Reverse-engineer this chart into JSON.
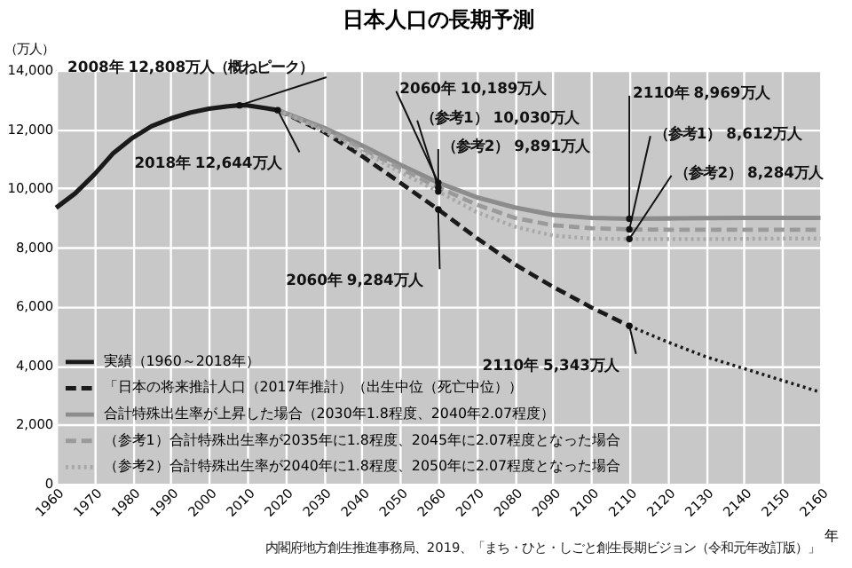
{
  "chart_data": {
    "type": "line",
    "title": "日本人口の長期予測",
    "ylabel": "（万人）",
    "xlabel": "年",
    "xlim": [
      1960,
      2160
    ],
    "xticks": [
      1960,
      1970,
      1980,
      1990,
      2000,
      2010,
      2020,
      2030,
      2040,
      2050,
      2060,
      2070,
      2080,
      2090,
      2100,
      2110,
      2120,
      2130,
      2140,
      2150,
      2160
    ],
    "ylim": [
      0,
      14000
    ],
    "yticks": [
      0,
      {
        "value": 2000,
        "label": "2,000"
      },
      {
        "value": 4000,
        "label": "4,000"
      },
      {
        "value": 6000,
        "label": "6,000"
      },
      {
        "value": 8000,
        "label": "8,000"
      },
      {
        "value": 10000,
        "label": "10,000"
      },
      {
        "value": 12000,
        "label": "12,000"
      },
      {
        "value": 14000,
        "label": "14,000"
      }
    ],
    "grid": true,
    "legend": "bottom left",
    "series": [
      {
        "name": "実績（1960～2018年）",
        "color": "#1a1a1a",
        "line_style": "solid",
        "x": [
          1960,
          1965,
          1970,
          1975,
          1980,
          1985,
          1990,
          1995,
          2000,
          2005,
          2008,
          2010,
          2015,
          2018
        ],
        "values": [
          9342,
          9828,
          10467,
          11194,
          11706,
          12105,
          12361,
          12557,
          12693,
          12777,
          12808,
          12806,
          12709,
          12644
        ]
      },
      {
        "name": "「日本の将来推計人口（2017年推計）（出生中位（死亡中位））",
        "color": "#1a1a1a",
        "line_style": "dashed",
        "x": [
          2018,
          2030,
          2040,
          2050,
          2060,
          2070,
          2080,
          2090,
          2100,
          2110
        ],
        "values": [
          12644,
          11913,
          11092,
          10192,
          9284,
          8323,
          7430,
          6668,
          5972,
          5343
        ]
      },
      {
        "color": "#1a1a1a",
        "line_style": "dotted",
        "x": [
          2110,
          2120,
          2130,
          2140,
          2150,
          2160
        ],
        "values": [
          5343,
          4800,
          4300,
          3900,
          3500,
          3100
        ]
      },
      {
        "name": "合計特殊出生率が上昇した場合（2030年1.8程度、2040年2.07程度）",
        "color": "#8c8c8c",
        "line_style": "solid",
        "x": [
          2018,
          2030,
          2040,
          2050,
          2060,
          2070,
          2080,
          2090,
          2100,
          2110,
          2120,
          2130,
          2140,
          2150,
          2160
        ],
        "values": [
          12644,
          12050,
          11450,
          10800,
          10189,
          9700,
          9350,
          9100,
          9000,
          8969,
          8980,
          8990,
          9000,
          9000,
          9000
        ]
      },
      {
        "name": "（参考1）合計特殊出生率が2035年に1.8程度、2045年に2.07程度となった場合",
        "color": "#9a9a9a",
        "line_style": "dashed",
        "x": [
          2018,
          2030,
          2040,
          2050,
          2060,
          2070,
          2080,
          2090,
          2100,
          2110,
          2120,
          2130,
          2140,
          2150,
          2160
        ],
        "values": [
          12644,
          12000,
          11350,
          10680,
          10030,
          9450,
          9000,
          8750,
          8650,
          8612,
          8600,
          8600,
          8600,
          8600,
          8600
        ]
      },
      {
        "name": "（参考2）合計特殊出生率が2040年に1.8程度、2050年に2.07程度となった場合",
        "color": "#a8a8a8",
        "line_style": "dotted",
        "x": [
          2018,
          2030,
          2040,
          2050,
          2060,
          2070,
          2080,
          2090,
          2100,
          2110,
          2120,
          2130,
          2140,
          2150,
          2160
        ],
        "values": [
          12644,
          11950,
          11250,
          10550,
          9891,
          9200,
          8700,
          8400,
          8300,
          8284,
          8280,
          8280,
          8290,
          8300,
          8300
        ]
      }
    ],
    "annotations": [
      {
        "text": "2008年 12,808万人（概ねピーク）",
        "x": 2008,
        "y": 12808
      },
      {
        "text": "2018年 12,644万人",
        "x": 2018,
        "y": 12644
      },
      {
        "text": "2060年 9,284万人",
        "x": 2060,
        "y": 9284
      },
      {
        "text": "2110年 5,343万人",
        "x": 2110,
        "y": 5343
      },
      {
        "text": "2060年 10,189万人",
        "x": 2060,
        "y": 10189
      },
      {
        "text": "（参考1） 10,030万人",
        "x": 2060,
        "y": 10030
      },
      {
        "text": "（参考2） 9,891万人",
        "x": 2060,
        "y": 9891
      },
      {
        "text": "2110年 8,969万人",
        "x": 2110,
        "y": 8969
      },
      {
        "text": "（参考1） 8,612万人",
        "x": 2110,
        "y": 8612
      },
      {
        "text": "（参考2） 8,284万人",
        "x": 2110,
        "y": 8284
      },
      "内閣府地方創生推進事務局、2019、「まち・ひと・しごと創生長期ビジョン（令和元年改訂版）」"
    ]
  }
}
